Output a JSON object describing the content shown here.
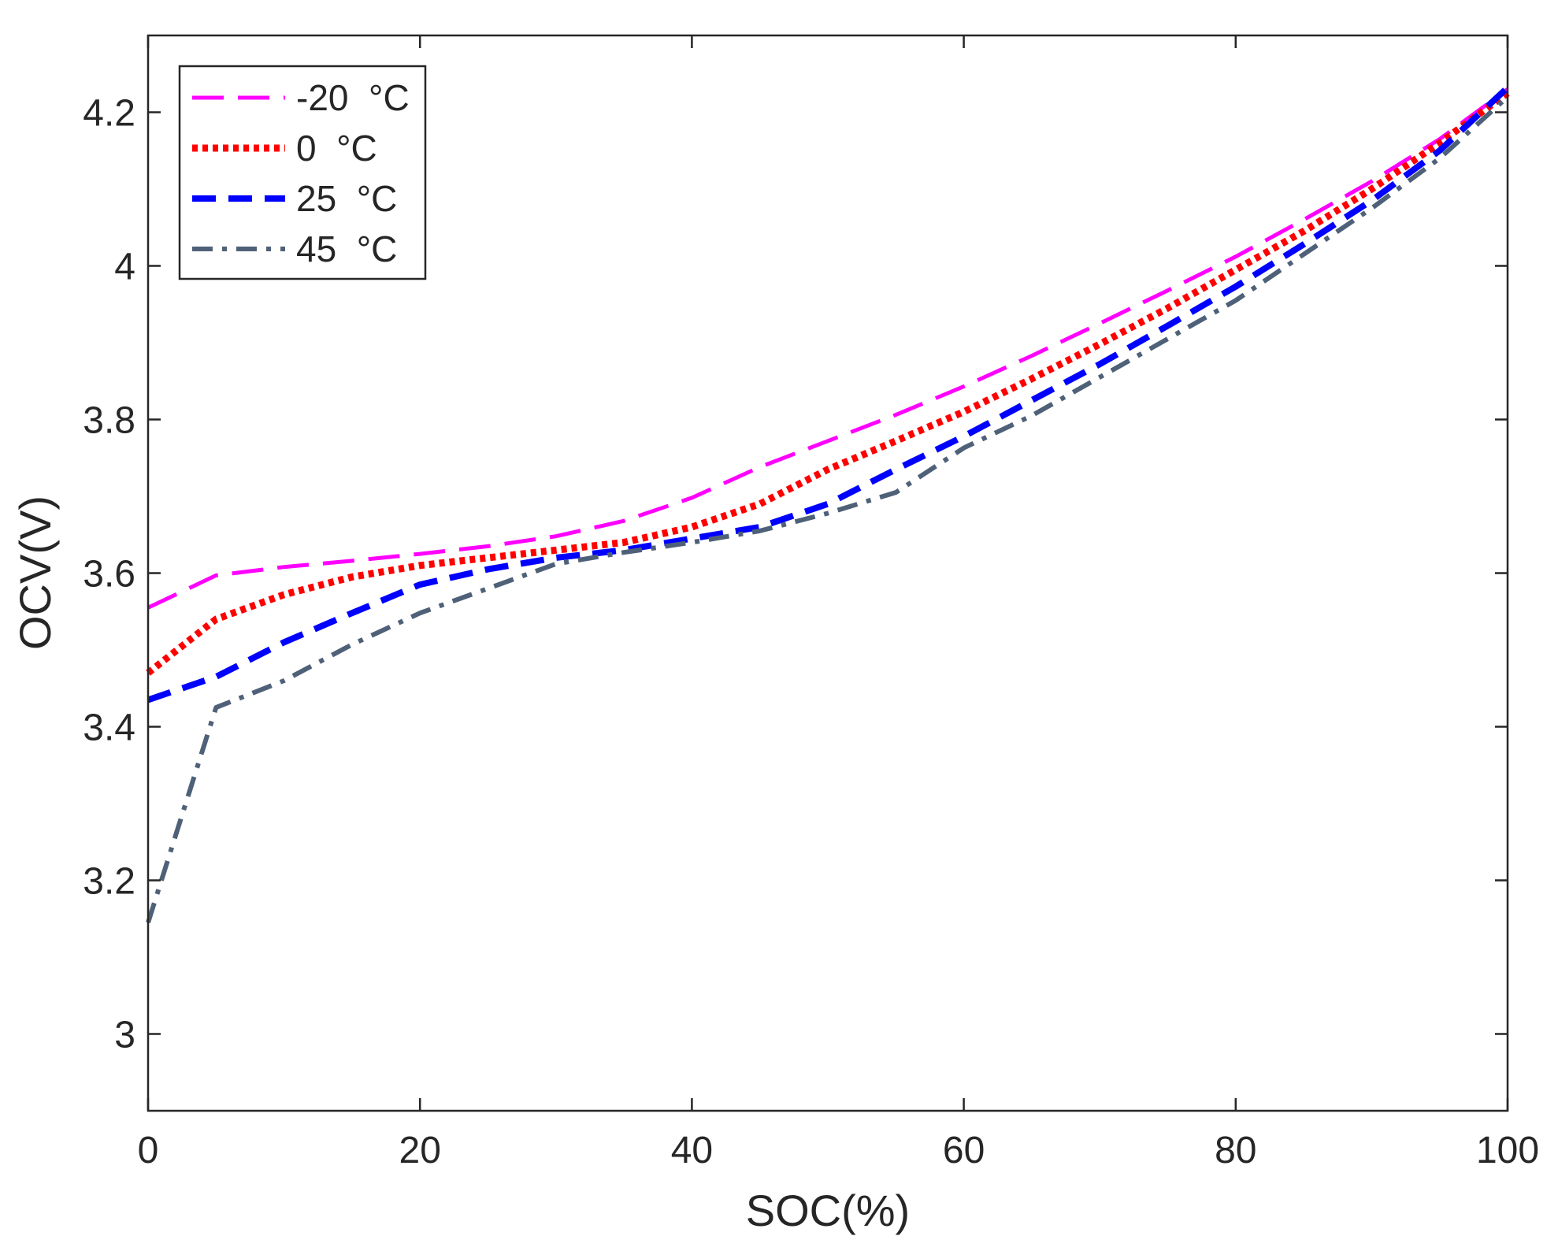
{
  "chart_data": {
    "type": "line",
    "title": "",
    "xlabel": "SOC(%)",
    "ylabel": "OCV(V)",
    "xlim": [
      0,
      100
    ],
    "ylim": [
      2.9,
      4.3
    ],
    "xticks": [
      0,
      20,
      40,
      60,
      80,
      100
    ],
    "yticks": [
      3,
      3.2,
      3.4,
      3.6,
      3.8,
      4,
      4.2
    ],
    "xtick_labels": [
      "0",
      "20",
      "40",
      "60",
      "80",
      "100"
    ],
    "ytick_labels": [
      "3",
      "3.2",
      "3.4",
      "3.6",
      "3.8",
      "4",
      "4.2"
    ],
    "grid": false,
    "legend_position": "top-left",
    "x": [
      0,
      5,
      10,
      15,
      20,
      25,
      30,
      35,
      40,
      45,
      50,
      55,
      60,
      65,
      70,
      75,
      80,
      85,
      90,
      95,
      100
    ],
    "series": [
      {
        "name": "-20  °C",
        "color": "#ff00ff",
        "style": "dashed",
        "values": [
          3.555,
          3.597,
          3.608,
          3.616,
          3.625,
          3.635,
          3.648,
          3.668,
          3.698,
          3.738,
          3.772,
          3.806,
          3.843,
          3.883,
          3.925,
          3.968,
          4.012,
          4.06,
          4.11,
          4.165,
          4.23
        ]
      },
      {
        "name": "0  °C",
        "color": "#ff0000",
        "style": "dotted",
        "values": [
          3.47,
          3.54,
          3.572,
          3.595,
          3.61,
          3.62,
          3.63,
          3.64,
          3.66,
          3.69,
          3.735,
          3.772,
          3.81,
          3.853,
          3.898,
          3.945,
          3.995,
          4.045,
          4.1,
          4.16,
          4.225
        ]
      },
      {
        "name": "25  °C",
        "color": "#0000ff",
        "style": "dashed-bold",
        "values": [
          3.435,
          3.465,
          3.51,
          3.548,
          3.585,
          3.605,
          3.62,
          3.63,
          3.645,
          3.66,
          3.69,
          3.735,
          3.778,
          3.825,
          3.872,
          3.922,
          3.973,
          4.028,
          4.085,
          4.15,
          4.232
        ]
      },
      {
        "name": "45  °C",
        "color": "#4f6178",
        "style": "dashdot",
        "values": [
          3.145,
          3.425,
          3.46,
          3.507,
          3.548,
          3.58,
          3.612,
          3.627,
          3.64,
          3.655,
          3.678,
          3.705,
          3.763,
          3.805,
          3.855,
          3.905,
          3.955,
          4.015,
          4.075,
          4.14,
          4.22
        ]
      }
    ]
  }
}
